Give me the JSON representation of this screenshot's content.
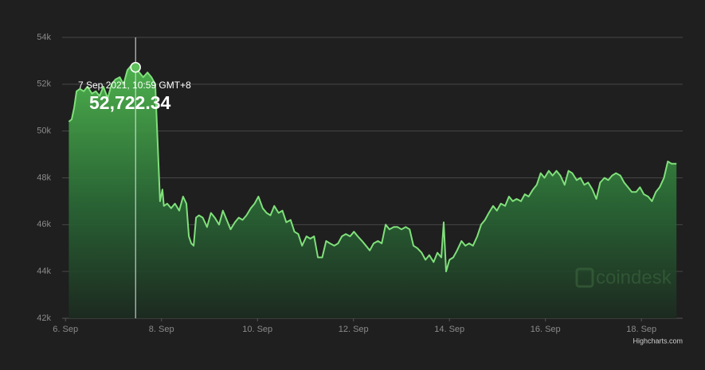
{
  "chart_data": {
    "type": "area",
    "color": "#7fe07a",
    "grid": true,
    "xlim": [
      5.93,
      18.86
    ],
    "xticks": [
      {
        "value": 6,
        "label": "6. Sep"
      },
      {
        "value": 8,
        "label": "8. Sep"
      },
      {
        "value": 10,
        "label": "10. Sep"
      },
      {
        "value": 12,
        "label": "12. Sep"
      },
      {
        "value": 14,
        "label": "14. Sep"
      },
      {
        "value": 16,
        "label": "16. Sep"
      },
      {
        "value": 18,
        "label": "18. Sep"
      }
    ],
    "ylim": [
      42000,
      54000
    ],
    "yticks": [
      {
        "value": 42000,
        "label": "42k"
      },
      {
        "value": 44000,
        "label": "44k"
      },
      {
        "value": 46000,
        "label": "46k"
      },
      {
        "value": 48000,
        "label": "48k"
      },
      {
        "value": 50000,
        "label": "50k"
      },
      {
        "value": 52000,
        "label": "52k"
      },
      {
        "value": 54000,
        "label": "54k"
      }
    ],
    "x": [
      6.07,
      6.13,
      6.18,
      6.23,
      6.3,
      6.38,
      6.46,
      6.55,
      6.63,
      6.71,
      6.79,
      6.88,
      6.96,
      7.04,
      7.13,
      7.21,
      7.29,
      7.37,
      7.46,
      7.54,
      7.62,
      7.71,
      7.79,
      7.87,
      7.92,
      7.97,
      8.02,
      8.05,
      8.12,
      8.2,
      8.28,
      8.37,
      8.45,
      8.52,
      8.57,
      8.62,
      8.67,
      8.72,
      8.78,
      8.86,
      8.95,
      9.03,
      9.11,
      9.2,
      9.28,
      9.36,
      9.44,
      9.53,
      9.61,
      9.69,
      9.77,
      9.86,
      9.94,
      10.02,
      10.11,
      10.19,
      10.27,
      10.35,
      10.44,
      10.52,
      10.6,
      10.69,
      10.77,
      10.85,
      10.93,
      11.02,
      11.1,
      11.18,
      11.26,
      11.35,
      11.43,
      11.51,
      11.6,
      11.68,
      11.76,
      11.84,
      11.93,
      12.01,
      12.09,
      12.18,
      12.26,
      12.34,
      12.42,
      12.51,
      12.59,
      12.67,
      12.75,
      12.84,
      12.92,
      13.0,
      13.09,
      13.17,
      13.25,
      13.33,
      13.42,
      13.5,
      13.58,
      13.67,
      13.75,
      13.83,
      13.88,
      13.93,
      14.0,
      14.08,
      14.16,
      14.25,
      14.33,
      14.41,
      14.49,
      14.58,
      14.66,
      14.74,
      14.82,
      14.91,
      14.99,
      15.07,
      15.16,
      15.24,
      15.32,
      15.4,
      15.49,
      15.57,
      15.65,
      15.74,
      15.82,
      15.9,
      15.98,
      16.07,
      16.15,
      16.23,
      16.31,
      16.4,
      16.48,
      16.56,
      16.65,
      16.73,
      16.81,
      16.89,
      16.98,
      17.06,
      17.14,
      17.23,
      17.31,
      17.39,
      17.47,
      17.56,
      17.64,
      17.72,
      17.8,
      17.89,
      17.97,
      18.05,
      18.14,
      18.22,
      18.3,
      18.38,
      18.47,
      18.55,
      18.63,
      18.73
    ],
    "values": [
      50400,
      50500,
      51000,
      51700,
      51800,
      51700,
      51900,
      51600,
      51700,
      51500,
      51900,
      51400,
      52000,
      52200,
      52300,
      52000,
      52600,
      52800,
      52722.34,
      52500,
      52300,
      52500,
      52300,
      52000,
      49500,
      47000,
      47500,
      46800,
      46900,
      46700,
      46900,
      46600,
      47200,
      46900,
      45500,
      45200,
      45100,
      46300,
      46400,
      46300,
      45900,
      46500,
      46300,
      46000,
      46600,
      46200,
      45800,
      46100,
      46300,
      46200,
      46400,
      46700,
      46900,
      47200,
      46700,
      46500,
      46400,
      46800,
      46500,
      46600,
      46100,
      46200,
      45700,
      45600,
      45100,
      45500,
      45400,
      45500,
      44600,
      44600,
      45300,
      45200,
      45100,
      45200,
      45500,
      45600,
      45500,
      45700,
      45500,
      45300,
      45100,
      44900,
      45200,
      45300,
      45200,
      46000,
      45800,
      45900,
      45900,
      45800,
      45900,
      45800,
      45100,
      45000,
      44800,
      44500,
      44700,
      44400,
      44800,
      44600,
      46100,
      44000,
      44500,
      44600,
      44900,
      45300,
      45100,
      45200,
      45100,
      45500,
      46000,
      46200,
      46500,
      46800,
      46600,
      46900,
      46800,
      47200,
      47000,
      47100,
      47000,
      47300,
      47200,
      47500,
      47700,
      48200,
      48000,
      48300,
      48100,
      48300,
      48100,
      47700,
      48300,
      48200,
      47900,
      48000,
      47700,
      47800,
      47500,
      47100,
      47800,
      48000,
      47900,
      48100,
      48200,
      48100,
      47800,
      47600,
      47400,
      47400,
      47600,
      47300,
      47200,
      47000,
      47400,
      47600,
      48000,
      48700,
      48600,
      48600
    ],
    "tooltip": {
      "label": "7 Sep 2021, 10:59 GMT+8",
      "x": 7.46,
      "value": 52722.34,
      "value_label": "52,722.34"
    },
    "watermark": "coindesk",
    "credits": "Highcharts.com"
  }
}
